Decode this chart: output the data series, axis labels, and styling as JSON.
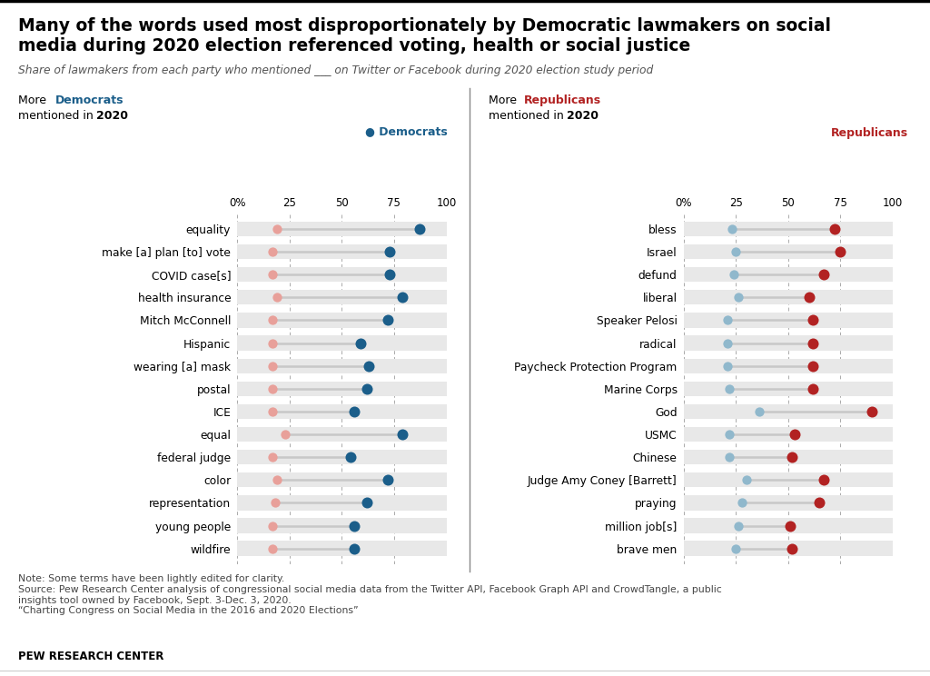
{
  "title_line1": "Many of the words used most disproportionately by Democratic lawmakers on social",
  "title_line2": "media during 2020 election referenced voting, health or social justice",
  "subtitle": "Share of lawmakers from each party who mentioned ___ on Twitter or Facebook during 2020 election study period",
  "note": "Note: Some terms have been lightly edited for clarity.\nSource: Pew Research Center analysis of congressional social media data from the Twitter API, Facebook Graph API and CrowdTangle, a public\ninsights tool owned by Facebook, Sept. 3-Dec. 3, 2020.\n“Charting Congress on Social Media in the 2016 and 2020 Elections”",
  "source_label": "PEW RESEARCH CENTER",
  "dem_dot_color": "#1B5E8A",
  "rep_dot_color": "#B22222",
  "dem_minor_color": "#E8A09A",
  "rep_minor_color": "#90B8CC",
  "bar_color": "#E8E8E8",
  "left_words": [
    "equality",
    "make [a] plan [to] vote",
    "COVID case[s]",
    "health insurance",
    "Mitch McConnell",
    "Hispanic",
    "wearing [a] mask",
    "postal",
    "ICE",
    "equal",
    "federal judge",
    "color",
    "representation",
    "young people",
    "wildfire"
  ],
  "left_dem_values": [
    87,
    73,
    73,
    79,
    72,
    59,
    63,
    62,
    56,
    79,
    54,
    72,
    62,
    56,
    56
  ],
  "left_rep_values": [
    19,
    17,
    17,
    19,
    17,
    17,
    17,
    17,
    17,
    23,
    17,
    19,
    18,
    17,
    17
  ],
  "right_words": [
    "bless",
    "Israel",
    "defund",
    "liberal",
    "Speaker Pelosi",
    "radical",
    "Paycheck Protection Program",
    "Marine Corps",
    "God",
    "USMC",
    "Chinese",
    "Judge Amy Coney [Barrett]",
    "praying",
    "million job[s]",
    "brave men"
  ],
  "right_rep_values": [
    72,
    75,
    67,
    60,
    62,
    62,
    62,
    62,
    90,
    53,
    52,
    67,
    65,
    51,
    52
  ],
  "right_dem_values": [
    23,
    25,
    24,
    26,
    21,
    21,
    21,
    22,
    36,
    22,
    22,
    30,
    28,
    26,
    25
  ],
  "xlim": [
    0,
    100
  ],
  "xticks": [
    0,
    25,
    50,
    75,
    100
  ],
  "xtick_labels": [
    "0%",
    "25",
    "50",
    "75",
    "100"
  ]
}
